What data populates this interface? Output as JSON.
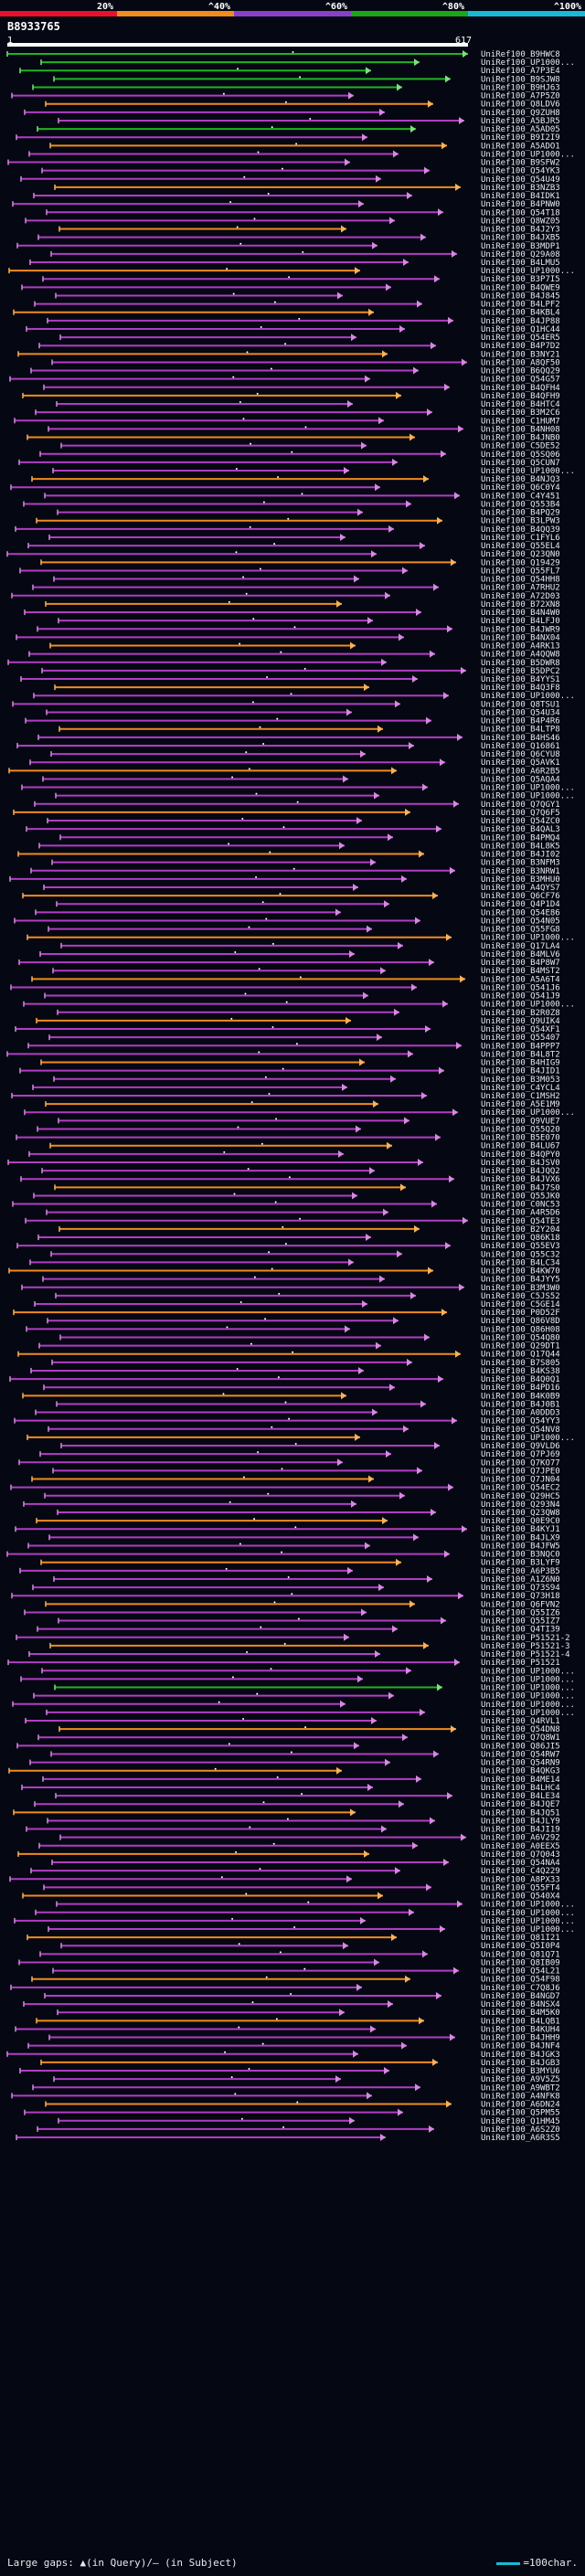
{
  "legend": {
    "labels": [
      "20%",
      "^40%",
      "^60%",
      "^80%",
      "^100%"
    ],
    "colors": [
      "#e8102a",
      "#f08c1e",
      "#8a3fc8",
      "#1aa51a",
      "#19b8d6"
    ]
  },
  "query": {
    "id": "B8933765",
    "start": "1",
    "end": "617"
  },
  "hit_colors": {
    "magenta": "#b23cc4",
    "orange": "#f08a1e",
    "green": "#22b322",
    "magenta_head": "#d58ae0",
    "orange_head": "#f6b25e",
    "green_head": "#7ee07e"
  },
  "hits": [
    "UniRef100_B9HWC8",
    "UniRef100_UP1000...",
    "UniRef100_A7P3E4",
    "UniRef100_B9SJW8",
    "UniRef100_B9HJ63",
    "UniRef100_A7P5Z0",
    "UniRef100_Q8LDV6",
    "UniRef100_Q9ZUH8",
    "UniRef100_A5BJR5",
    "UniRef100_A5AD05",
    "UniRef100_B9I2I9",
    "UniRef100_A5ADO1",
    "UniRef100_UP1000...",
    "UniRef100_B9SFW2",
    "UniRef100_Q54YK3",
    "UniRef100_Q54U49",
    "UniRef100_B3NZB3",
    "UniRef100_B4IDK1",
    "UniRef100_B4PNW0",
    "UniRef100_Q54T18",
    "UniRef100_Q8WZ05",
    "UniRef100_B4J2Y3",
    "UniRef100_B4JXB5",
    "UniRef100_B3MDP1",
    "UniRef100_Q29A08",
    "UniRef100_B4LMU5",
    "UniRef100_UP1000...",
    "UniRef100_B3P7I5",
    "UniRef100_B4QWE9",
    "UniRef100_B4J845",
    "UniRef100_B4LPF2",
    "UniRef100_B4KBL4",
    "UniRef100_B4JP88",
    "UniRef100_Q1HC44",
    "UniRef100_Q54ER5",
    "UniRef100_B4P7D2",
    "UniRef100_B3NY21",
    "UniRef100_A8QF50",
    "UniRef100_B6QQ29",
    "UniRef100_Q54G57",
    "UniRef100_B4QFH4",
    "UniRef100_B4QFH9",
    "UniRef100_B4HTC4",
    "UniRef100_B3M2C6",
    "UniRef100_C1HUM7",
    "UniRef100_B4NH08",
    "UniRef100_B4JNB0",
    "UniRef100_C5DE52",
    "UniRef100_Q5SQ06",
    "UniRef100_Q5CUN7",
    "UniRef100_UP1000...",
    "UniRef100_B4NJQ3",
    "UniRef100_Q6C0Y4",
    "UniRef100_C4Y451",
    "UniRef100_Q553B4",
    "UniRef100_B4PQ29",
    "UniRef100_B3LPW3",
    "UniRef100_B4QQ39",
    "UniRef100_C1FYL6",
    "UniRef100_Q55EL4",
    "UniRef100_Q23QN0",
    "UniRef100_Q19429",
    "UniRef100_Q55FL7",
    "UniRef100_Q54HH8",
    "UniRef100_A7RHU2",
    "UniRef100_A72D03",
    "UniRef100_B72XN8",
    "UniRef100_B4N4W0",
    "UniRef100_B4LFJ0",
    "UniRef100_B4JWR9",
    "UniRef100_B4NX04",
    "UniRef100_A4RK13",
    "UniRef100_A4QQW8",
    "UniRef100_B5DWR8",
    "UniRef100_B5DPC2",
    "UniRef100_B4YYS1",
    "UniRef100_B4Q3F8",
    "UniRef100_UP1000...",
    "UniRef100_Q8TSU1",
    "UniRef100_Q54U34",
    "UniRef100_B4P4R6",
    "UniRef100_B4LTP8",
    "UniRef100_B4HS46",
    "UniRef100_Q16861",
    "UniRef100_Q6CYU8",
    "UniRef100_Q5AVK1",
    "UniRef100_A6R2B5",
    "UniRef100_Q5AQA4",
    "UniRef100_UP1000...",
    "UniRef100_UP1000...",
    "UniRef100_Q7QGY1",
    "UniRef100_Q7Q6F5",
    "UniRef100_Q54ZC0",
    "UniRef100_B4QAL3",
    "UniRef100_B4PMQ4",
    "UniRef100_B4L8K5",
    "UniRef100_B4JI02",
    "UniRef100_B3NFM3",
    "UniRef100_B3NRW1",
    "UniRef100_B3MHU0",
    "UniRef100_A4QYS7",
    "UniRef100_Q6CF76",
    "UniRef100_Q4P1D4",
    "UniRef100_Q54E86",
    "UniRef100_Q54N05",
    "UniRef100_Q55FG8",
    "UniRef100_UP1000...",
    "UniRef100_Q17LA4",
    "UniRef100_B4MLV6",
    "UniRef100_B4P8W7",
    "UniRef100_B4MST2",
    "UniRef100_A5A6T4",
    "UniRef100_Q541J6",
    "UniRef100_Q541J9",
    "UniRef100_UP1000...",
    "UniRef100_B2R0Z8",
    "UniRef100_Q9UIK4",
    "UniRef100_Q54XF1",
    "UniRef100_Q55407",
    "UniRef100_B4PPP7",
    "UniRef100_B4L8T2",
    "UniRef100_B4HIG9",
    "UniRef100_B4JID1",
    "UniRef100_B3M053",
    "UniRef100_C4YCL4",
    "UniRef100_C1MSH2",
    "UniRef100_A5E1M9",
    "UniRef100_UP1000...",
    "UniRef100_Q9VUE7",
    "UniRef100_Q55Q20",
    "UniRef100_B5E070",
    "UniRef100_B4LU67",
    "UniRef100_B4QPY0",
    "UniRef100_B4JSV0",
    "UniRef100_B4JQQ2",
    "UniRef100_B4JVX6",
    "UniRef100_B4J7S0",
    "UniRef100_Q55JK0",
    "UniRef100_C0NC53",
    "UniRef100_A4R5D6",
    "UniRef100_Q54TE3",
    "UniRef100_B2Y204",
    "UniRef100_Q86K18",
    "UniRef100_Q55EV3",
    "UniRef100_Q55C32",
    "UniRef100_B4LC34",
    "UniRef100_B4KW70",
    "UniRef100_B4JYY5",
    "UniRef100_B3M3W0",
    "UniRef100_C5JS52",
    "UniRef100_C5GE14",
    "UniRef100_P0D52F",
    "UniRef100_Q86V8D",
    "UniRef100_Q86H08",
    "UniRef100_Q54Q80",
    "UniRef100_Q29DT1",
    "UniRef100_Q17Q44",
    "UniRef100_B7S805",
    "UniRef100_B4KS38",
    "UniRef100_B4Q0Q1",
    "UniRef100_B4PD16",
    "UniRef100_B4K0B9",
    "UniRef100_B4J0B1",
    "UniRef100_A0DDD3",
    "UniRef100_Q54YY3",
    "UniRef100_Q54NV8",
    "UniRef100_UP1000...",
    "UniRef100_Q9VLD6",
    "UniRef100_Q7PJ69",
    "UniRef100_Q7KO77",
    "UniRef100_Q7JPE0",
    "UniRef100_Q7JN04",
    "UniRef100_Q54EC2",
    "UniRef100_Q29HC5",
    "UniRef100_Q293N4",
    "UniRef100_Q23QW8",
    "UniRef100_Q0E9C0",
    "UniRef100_B4KYJ1",
    "UniRef100_B4JLX9",
    "UniRef100_B4JFW5",
    "UniRef100_B3NQC0",
    "UniRef100_B3LYF9",
    "UniRef100_A6P3B5",
    "UniRef100_A1Z6N0",
    "UniRef100_Q73S94",
    "UniRef100_Q73H18",
    "UniRef100_Q6FVN2",
    "UniRef100_Q55IZ6",
    "UniRef100_Q55IZ7",
    "UniRef100_Q4TI39",
    "UniRef100_P51521-2",
    "UniRef100_P51521-3",
    "UniRef100_P51521-4",
    "UniRef100_P51521",
    "UniRef100_UP1000...",
    "UniRef100_UP1000...",
    "UniRef100_UP1000...",
    "UniRef100_UP1000...",
    "UniRef100_UP1000...",
    "UniRef100_UP1000...",
    "UniRef100_Q4RVL1",
    "UniRef100_Q54DN8",
    "UniRef100_Q7Q8W1",
    "UniRef100_Q86JI5",
    "UniRef100_Q54RW7",
    "UniRef100_Q54RN9",
    "UniRef100_B4QKG3",
    "UniRef100_B4ME14",
    "UniRef100_B4LHC4",
    "UniRef100_B4LE34",
    "UniRef100_B4JQE7",
    "UniRef100_B4JQ51",
    "UniRef100_B4JLY9",
    "UniRef100_B4JI19",
    "UniRef100_A6V292",
    "UniRef100_A0EEX5",
    "UniRef100_Q7Q043",
    "UniRef100_Q54NA4",
    "UniRef100_C4Q229",
    "UniRef100_A8PX33",
    "UniRef100_Q55FT4",
    "UniRef100_Q540X4",
    "UniRef100_UP1000...",
    "UniRef100_UP1000...",
    "UniRef100_UP1000...",
    "UniRef100_UP1000...",
    "UniRef100_Q81I21",
    "UniRef100_Q5I0P4",
    "UniRef100_Q81Q71",
    "UniRef100_Q8IB09",
    "UniRef100_Q54L21",
    "UniRef100_Q54F98",
    "UniRef100_C7Q8J6",
    "UniRef100_B4NGD7",
    "UniRef100_B4NSX4",
    "UniRef100_B4M5K0",
    "UniRef100_B4LQB1",
    "UniRef100_B4KUH4",
    "UniRef100_B4JHH9",
    "UniRef100_B4JNF4",
    "UniRef100_B4JGK3",
    "UniRef100_B4JGB3",
    "UniRef100_B3MYU6",
    "UniRef100_A9V5Z5",
    "UniRef100_A9WBT2",
    "UniRef100_A4NFK8",
    "UniRef100_A6DN24",
    "UniRef100_Q5PM55",
    "UniRef100_Q1HM45",
    "UniRef100_A6S2Z0",
    "UniRef100_A6R3S5"
  ],
  "footer": {
    "left": "Large gaps: ▲(in Query)/— (in Subject)",
    "right": "=100char."
  }
}
